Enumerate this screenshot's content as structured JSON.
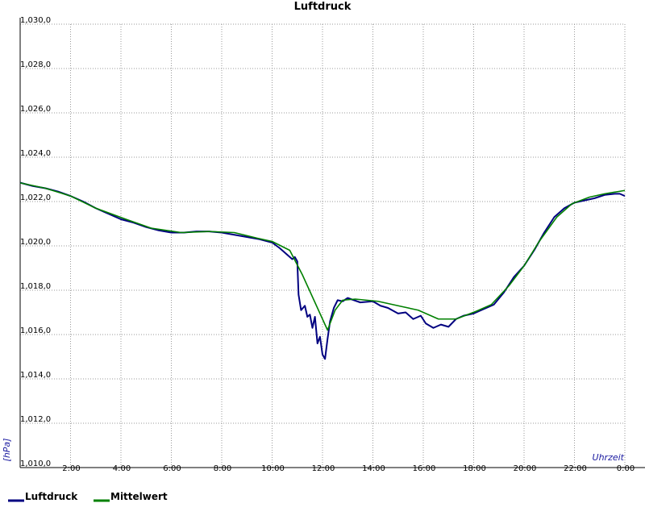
{
  "chart_data": {
    "type": "line",
    "title": "Luftdruck",
    "x_label": "Uhrzeit",
    "y_label": "[hPa]",
    "xlim": [
      0,
      24
    ],
    "ylim": [
      1010,
      1030
    ],
    "grid": true,
    "xticks": [
      {
        "value": 2,
        "label": "2:00"
      },
      {
        "value": 4,
        "label": "4:00"
      },
      {
        "value": 6,
        "label": "6:00"
      },
      {
        "value": 8,
        "label": "8:00"
      },
      {
        "value": 10,
        "label": "10:00"
      },
      {
        "value": 12,
        "label": "12:00"
      },
      {
        "value": 14,
        "label": "14:00"
      },
      {
        "value": 16,
        "label": "16:00"
      },
      {
        "value": 18,
        "label": "18:00"
      },
      {
        "value": 20,
        "label": "20:00"
      },
      {
        "value": 22,
        "label": "22:00"
      },
      {
        "value": 24,
        "label": "0:00"
      }
    ],
    "yticks": [
      {
        "value": 1010,
        "label": "1,010,0"
      },
      {
        "value": 1012,
        "label": "1,012,0"
      },
      {
        "value": 1014,
        "label": "1,014,0"
      },
      {
        "value": 1016,
        "label": "1,016,0"
      },
      {
        "value": 1018,
        "label": "1,018,0"
      },
      {
        "value": 1020,
        "label": "1,020,0"
      },
      {
        "value": 1022,
        "label": "1,022,0"
      },
      {
        "value": 1024,
        "label": "1,024,0"
      },
      {
        "value": 1026,
        "label": "1,026,0"
      },
      {
        "value": 1028,
        "label": "1,028,0"
      },
      {
        "value": 1030,
        "label": "1,030,0"
      }
    ],
    "series": [
      {
        "name": "Luftdruck",
        "color": "#000080",
        "x": [
          0,
          0.5,
          1,
          1.5,
          2,
          2.5,
          3,
          3.5,
          4,
          4.5,
          5,
          5.5,
          6,
          6.5,
          7,
          7.5,
          8,
          8.5,
          9,
          9.5,
          10,
          10.3,
          10.6,
          10.8,
          10.9,
          11.0,
          11.05,
          11.15,
          11.3,
          11.4,
          11.5,
          11.6,
          11.7,
          11.8,
          11.9,
          12.0,
          12.1,
          12.2,
          12.3,
          12.45,
          12.6,
          12.8,
          13,
          13.5,
          14,
          14.3,
          14.6,
          15,
          15.3,
          15.6,
          15.9,
          16.1,
          16.4,
          16.7,
          17,
          17.3,
          17.6,
          18,
          18.4,
          18.8,
          19.2,
          19.6,
          20,
          20.4,
          20.8,
          21.2,
          21.6,
          22,
          22.4,
          22.8,
          23.2,
          23.6,
          23.8,
          24
        ],
        "values": [
          1022.85,
          1022.7,
          1022.6,
          1022.45,
          1022.25,
          1022.0,
          1021.7,
          1021.45,
          1021.2,
          1021.05,
          1020.85,
          1020.7,
          1020.6,
          1020.6,
          1020.65,
          1020.65,
          1020.6,
          1020.5,
          1020.4,
          1020.3,
          1020.15,
          1019.9,
          1019.6,
          1019.4,
          1019.5,
          1019.3,
          1017.8,
          1017.1,
          1017.3,
          1016.8,
          1016.9,
          1016.3,
          1016.8,
          1015.6,
          1015.9,
          1015.1,
          1014.9,
          1015.8,
          1016.6,
          1017.2,
          1017.55,
          1017.5,
          1017.65,
          1017.45,
          1017.5,
          1017.3,
          1017.2,
          1016.95,
          1017.0,
          1016.7,
          1016.85,
          1016.5,
          1016.3,
          1016.45,
          1016.35,
          1016.7,
          1016.85,
          1016.95,
          1017.15,
          1017.35,
          1017.9,
          1018.6,
          1019.1,
          1019.8,
          1020.6,
          1021.3,
          1021.7,
          1021.95,
          1022.05,
          1022.15,
          1022.3,
          1022.35,
          1022.35,
          1022.25
        ]
      },
      {
        "name": "Mittelwert",
        "color": "#008000",
        "x": [
          0,
          1,
          2,
          3,
          4.2,
          5.2,
          6.4,
          7.5,
          8.5,
          9.4,
          10,
          10.7,
          11.2,
          11.7,
          12.2,
          12.5,
          12.8,
          13.3,
          14.2,
          15.2,
          15.8,
          16.6,
          17.3,
          18.1,
          18.7,
          19.4,
          20,
          20.6,
          21.3,
          21.9,
          22.6,
          23.2,
          24
        ],
        "values": [
          1022.84,
          1022.6,
          1022.25,
          1021.7,
          1021.2,
          1020.8,
          1020.6,
          1020.65,
          1020.6,
          1020.35,
          1020.2,
          1019.8,
          1018.7,
          1017.45,
          1016.2,
          1017.1,
          1017.55,
          1017.6,
          1017.5,
          1017.25,
          1017.1,
          1016.7,
          1016.7,
          1017.05,
          1017.35,
          1018.2,
          1019.1,
          1020.2,
          1021.3,
          1021.9,
          1022.2,
          1022.35,
          1022.5
        ]
      }
    ]
  }
}
